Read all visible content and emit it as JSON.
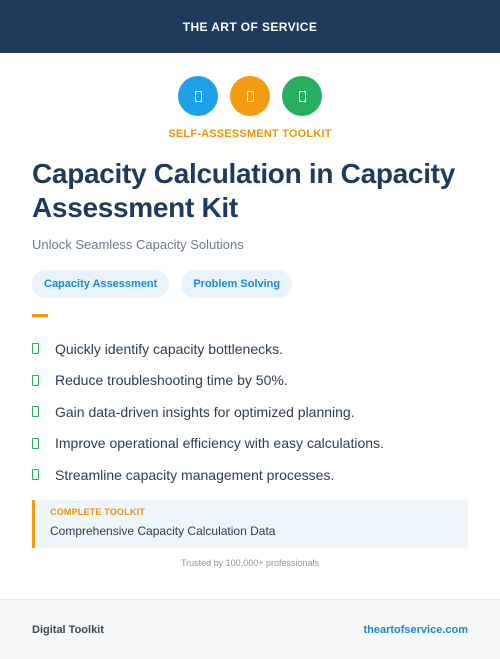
{
  "header": {
    "brand": "THE ART OF SERVICE"
  },
  "icons": [
    {
      "name": "document-icon",
      "color": "#1ea1e6"
    },
    {
      "name": "document-icon",
      "color": "#f39c12"
    },
    {
      "name": "document-icon",
      "color": "#27ae60"
    }
  ],
  "kicker": {
    "text": "SELF-ASSESSMENT TOOLKIT",
    "color": "#e8940c"
  },
  "title": "Capacity Calculation in Capacity Assessment Kit",
  "subtitle": "Unlock Seamless Capacity Solutions",
  "tags": [
    "Capacity Assessment",
    "Problem Solving"
  ],
  "benefits": [
    "Quickly identify capacity bottlenecks.",
    "Reduce troubleshooting time by 50%.",
    "Gain data-driven insights for optimized planning.",
    "Improve operational efficiency with easy calculations.",
    "Streamline capacity management processes."
  ],
  "toolkit": {
    "label": "COMPLETE TOOLKIT",
    "value": "Comprehensive Capacity Calculation Data"
  },
  "trusted": "Trusted by 100,000+ professionals",
  "footer": {
    "left": "Digital Toolkit",
    "right": "theartofservice.com"
  }
}
